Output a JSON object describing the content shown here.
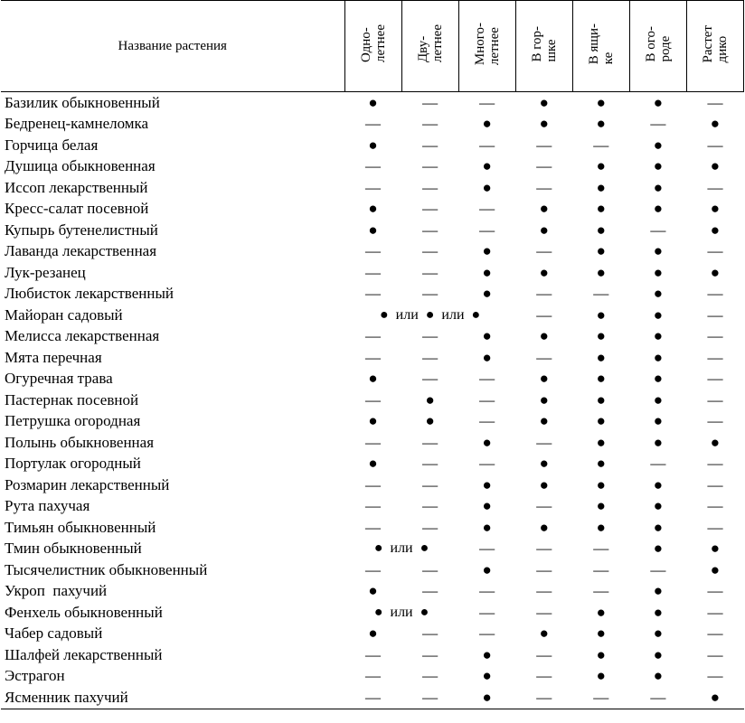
{
  "table": {
    "header": {
      "name": "Название растения",
      "columns": [
        [
          "Одно-",
          "летнее"
        ],
        [
          "Дву-",
          "летнее"
        ],
        [
          "Много-",
          "летнее"
        ],
        [
          "В гор-",
          "шке"
        ],
        [
          "В ящи-",
          "ке"
        ],
        [
          "В ого-",
          "роде"
        ],
        [
          "Растет",
          "дико"
        ]
      ]
    },
    "rows": [
      {
        "name": "Базилик обыкновенный",
        "cells": [
          "●",
          "—",
          "—",
          "●",
          "●",
          "●",
          "—"
        ]
      },
      {
        "name": "Бедренец-камнеломка",
        "cells": [
          "—",
          "—",
          "●",
          "●",
          "●",
          "—",
          "●"
        ]
      },
      {
        "name": "Горчица белая",
        "cells": [
          "●",
          "—",
          "—",
          "—",
          "—",
          "●",
          "—"
        ]
      },
      {
        "name": "Душица обыкновенная",
        "cells": [
          "—",
          "—",
          "●",
          "—",
          "●",
          "●",
          "●"
        ]
      },
      {
        "name": "Иссоп лекарственный",
        "cells": [
          "—",
          "—",
          "●",
          "—",
          "●",
          "●",
          "—"
        ]
      },
      {
        "name": "Кресс-салат посевной",
        "cells": [
          "●",
          "—",
          "—",
          "●",
          "●",
          "●",
          "●"
        ]
      },
      {
        "name": "Купырь бутенелистный",
        "cells": [
          "●",
          "—",
          "—",
          "●",
          "●",
          "—",
          "●"
        ]
      },
      {
        "name": "Лаванда лекарственная",
        "cells": [
          "—",
          "—",
          "●",
          "—",
          "●",
          "●",
          "—"
        ]
      },
      {
        "name": "Лук-резанец",
        "cells": [
          "—",
          "—",
          "●",
          "●",
          "●",
          "●",
          "●"
        ]
      },
      {
        "name": "Любисток лекарственный",
        "cells": [
          "—",
          "—",
          "●",
          "—",
          "—",
          "●",
          "—"
        ]
      },
      {
        "name": "Майоран садовый",
        "cells": [
          "●  или  ●  или  ●",
          "—",
          "●",
          "●",
          "—"
        ]
      },
      {
        "name": "Мелисса лекарственная",
        "cells": [
          "—",
          "—",
          "●",
          "●",
          "●",
          "●",
          "—"
        ]
      },
      {
        "name": "Мята перечная",
        "cells": [
          "—",
          "—",
          "●",
          "—",
          "●",
          "●",
          "—"
        ]
      },
      {
        "name": "Огуречная трава",
        "cells": [
          "●",
          "—",
          "—",
          "●",
          "●",
          "●",
          "—"
        ]
      },
      {
        "name": "Пастернак посевной",
        "cells": [
          "—",
          "●",
          "—",
          "●",
          "●",
          "●",
          "—"
        ]
      },
      {
        "name": "Петрушка огородная",
        "cells": [
          "●",
          "●",
          "—",
          "●",
          "●",
          "●",
          "—"
        ]
      },
      {
        "name": "Полынь обыкновенная",
        "cells": [
          "—",
          "—",
          "●",
          "—",
          "●",
          "●",
          "●"
        ]
      },
      {
        "name": "Портулак огородный",
        "cells": [
          "●",
          "—",
          "—",
          "●",
          "●",
          "—",
          "—"
        ]
      },
      {
        "name": "Розмарин лекарственный",
        "cells": [
          "—",
          "—",
          "●",
          "●",
          "●",
          "●",
          "—"
        ]
      },
      {
        "name": "Рута пахучая",
        "cells": [
          "—",
          "—",
          "●",
          "—",
          "●",
          "●",
          "—"
        ]
      },
      {
        "name": "Тимьян обыкновенный",
        "cells": [
          "—",
          "—",
          "●",
          "●",
          "●",
          "●",
          "—"
        ]
      },
      {
        "name": "Тмин обыкновенный",
        "cells": [
          "●  или  ●",
          "—",
          "—",
          "—",
          "●",
          "●"
        ]
      },
      {
        "name": "Тысячелистник обыкновенный",
        "cells": [
          "—",
          "—",
          "●",
          "—",
          "—",
          "—",
          "●"
        ]
      },
      {
        "name": "Укроп  пахучий",
        "cells": [
          "●",
          "—",
          "—",
          "—",
          "—",
          "●",
          "—"
        ]
      },
      {
        "name": "Фенхель обыкновенный",
        "cells": [
          "●  или  ●",
          "—",
          "—",
          "●",
          "●",
          "—"
        ]
      },
      {
        "name": "Чабер садовый",
        "cells": [
          "●",
          "—",
          "—",
          "●",
          "●",
          "●",
          "—"
        ]
      },
      {
        "name": "Шалфей лекарственный",
        "cells": [
          "—",
          "—",
          "●",
          "—",
          "●",
          "●",
          "—"
        ]
      },
      {
        "name": "Эстрагон",
        "cells": [
          "—",
          "—",
          "●",
          "—",
          "●",
          "●",
          "—"
        ]
      },
      {
        "name": "Ясменник пахучий",
        "cells": [
          "—",
          "—",
          "●",
          "—",
          "—",
          "—",
          "●"
        ]
      }
    ]
  }
}
